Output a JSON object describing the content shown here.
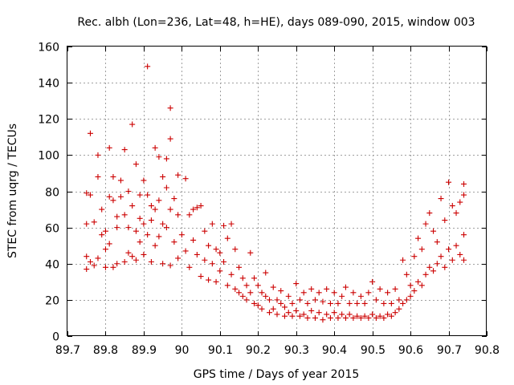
{
  "chart_data": {
    "type": "scatter",
    "title": "Rec. albh (Lon=236, Lat=48, h=HE), days 089-090, 2015, window 003",
    "xlabel": "GPS time / Days of year 2015",
    "ylabel": "STEC from uqrg / TECUs",
    "xlim": [
      89.7,
      90.8
    ],
    "ylim": [
      0,
      160
    ],
    "xticks": [
      "89.7",
      "89.8",
      "89.9",
      "90",
      "90.1",
      "90.2",
      "90.3",
      "90.4",
      "90.5",
      "90.6",
      "90.7",
      "90.8"
    ],
    "xtick_values": [
      89.7,
      89.8,
      89.9,
      90.0,
      90.1,
      90.2,
      90.3,
      90.4,
      90.5,
      90.6,
      90.7,
      90.8
    ],
    "yticks": [
      "0",
      "20",
      "40",
      "60",
      "80",
      "100",
      "120",
      "140",
      "160"
    ],
    "ytick_values": [
      0,
      20,
      40,
      60,
      80,
      100,
      120,
      140,
      160
    ],
    "grid": true,
    "marker": "+",
    "marker_color": "#cc0000",
    "series": [
      {
        "name": "STEC",
        "points": [
          [
            89.75,
            37
          ],
          [
            89.75,
            44
          ],
          [
            89.75,
            62
          ],
          [
            89.75,
            79
          ],
          [
            89.76,
            78
          ],
          [
            89.76,
            112
          ],
          [
            89.76,
            41
          ],
          [
            89.77,
            39
          ],
          [
            89.77,
            63
          ],
          [
            89.78,
            100
          ],
          [
            89.78,
            88
          ],
          [
            89.78,
            43
          ],
          [
            89.79,
            70
          ],
          [
            89.79,
            56
          ],
          [
            89.8,
            38
          ],
          [
            89.8,
            58
          ],
          [
            89.8,
            48
          ],
          [
            89.81,
            104
          ],
          [
            89.81,
            77
          ],
          [
            89.81,
            51
          ],
          [
            89.82,
            38
          ],
          [
            89.82,
            88
          ],
          [
            89.82,
            75
          ],
          [
            89.83,
            66
          ],
          [
            89.83,
            60
          ],
          [
            89.83,
            40
          ],
          [
            89.84,
            86
          ],
          [
            89.84,
            77
          ],
          [
            89.85,
            103
          ],
          [
            89.85,
            67
          ],
          [
            89.85,
            41
          ],
          [
            89.86,
            80
          ],
          [
            89.86,
            60
          ],
          [
            89.86,
            46
          ],
          [
            89.87,
            117
          ],
          [
            89.87,
            72
          ],
          [
            89.87,
            44
          ],
          [
            89.88,
            95
          ],
          [
            89.88,
            58
          ],
          [
            89.88,
            42
          ],
          [
            89.89,
            78
          ],
          [
            89.89,
            65
          ],
          [
            89.89,
            52
          ],
          [
            89.9,
            86
          ],
          [
            89.9,
            62
          ],
          [
            89.9,
            45
          ],
          [
            89.91,
            149
          ],
          [
            89.91,
            78
          ],
          [
            89.91,
            56
          ],
          [
            89.92,
            72
          ],
          [
            89.92,
            64
          ],
          [
            89.92,
            41
          ],
          [
            89.93,
            104
          ],
          [
            89.93,
            70
          ],
          [
            89.93,
            50
          ],
          [
            89.94,
            99
          ],
          [
            89.94,
            75
          ],
          [
            89.94,
            55
          ],
          [
            89.95,
            88
          ],
          [
            89.95,
            62
          ],
          [
            89.95,
            40
          ],
          [
            89.96,
            98
          ],
          [
            89.96,
            82
          ],
          [
            89.96,
            60
          ],
          [
            89.97,
            126
          ],
          [
            89.97,
            109
          ],
          [
            89.97,
            70
          ],
          [
            89.97,
            39
          ],
          [
            89.98,
            76
          ],
          [
            89.98,
            52
          ],
          [
            89.99,
            89
          ],
          [
            89.99,
            67
          ],
          [
            89.99,
            43
          ],
          [
            90.0,
            56
          ],
          [
            90.01,
            87
          ],
          [
            90.01,
            47
          ],
          [
            90.02,
            67
          ],
          [
            90.02,
            38
          ],
          [
            90.03,
            70
          ],
          [
            90.03,
            53
          ],
          [
            90.04,
            71
          ],
          [
            90.04,
            45
          ],
          [
            90.05,
            72
          ],
          [
            90.05,
            33
          ],
          [
            90.06,
            58
          ],
          [
            90.06,
            42
          ],
          [
            90.07,
            50
          ],
          [
            90.07,
            31
          ],
          [
            90.08,
            62
          ],
          [
            90.08,
            40
          ],
          [
            90.09,
            48
          ],
          [
            90.09,
            30
          ],
          [
            90.1,
            46
          ],
          [
            90.1,
            36
          ],
          [
            90.11,
            61
          ],
          [
            90.11,
            41
          ],
          [
            90.12,
            54
          ],
          [
            90.12,
            28
          ],
          [
            90.13,
            62
          ],
          [
            90.13,
            34
          ],
          [
            90.14,
            48
          ],
          [
            90.14,
            26
          ],
          [
            90.15,
            38
          ],
          [
            90.15,
            24
          ],
          [
            90.16,
            32
          ],
          [
            90.16,
            22
          ],
          [
            90.17,
            28
          ],
          [
            90.17,
            20
          ],
          [
            90.18,
            46
          ],
          [
            90.18,
            24
          ],
          [
            90.19,
            32
          ],
          [
            90.19,
            18
          ],
          [
            90.2,
            28
          ],
          [
            90.2,
            17
          ],
          [
            90.21,
            24
          ],
          [
            90.21,
            15
          ],
          [
            90.22,
            22
          ],
          [
            90.22,
            35
          ],
          [
            90.23,
            20
          ],
          [
            90.23,
            13
          ],
          [
            90.24,
            27
          ],
          [
            90.24,
            15
          ],
          [
            90.25,
            20
          ],
          [
            90.25,
            12
          ],
          [
            90.26,
            18
          ],
          [
            90.26,
            25
          ],
          [
            90.27,
            16
          ],
          [
            90.27,
            11
          ],
          [
            90.28,
            22
          ],
          [
            90.28,
            13
          ],
          [
            90.29,
            18
          ],
          [
            90.29,
            11
          ],
          [
            90.3,
            29
          ],
          [
            90.3,
            14
          ],
          [
            90.31,
            20
          ],
          [
            90.31,
            11
          ],
          [
            90.32,
            24
          ],
          [
            90.32,
            12
          ],
          [
            90.33,
            18
          ],
          [
            90.33,
            10
          ],
          [
            90.34,
            26
          ],
          [
            90.34,
            14
          ],
          [
            90.35,
            20
          ],
          [
            90.35,
            10
          ],
          [
            90.36,
            24
          ],
          [
            90.36,
            13
          ],
          [
            90.37,
            19
          ],
          [
            90.37,
            9
          ],
          [
            90.38,
            26
          ],
          [
            90.38,
            12
          ],
          [
            90.39,
            18
          ],
          [
            90.39,
            10
          ],
          [
            90.4,
            24
          ],
          [
            90.4,
            13
          ],
          [
            90.41,
            18
          ],
          [
            90.41,
            10
          ],
          [
            90.42,
            22
          ],
          [
            90.42,
            12
          ],
          [
            90.43,
            27
          ],
          [
            90.43,
            10
          ],
          [
            90.44,
            18
          ],
          [
            90.44,
            12
          ],
          [
            90.45,
            24
          ],
          [
            90.45,
            10
          ],
          [
            90.46,
            18
          ],
          [
            90.46,
            11
          ],
          [
            90.47,
            22
          ],
          [
            90.47,
            10
          ],
          [
            90.48,
            18
          ],
          [
            90.48,
            11
          ],
          [
            90.49,
            24
          ],
          [
            90.49,
            10
          ],
          [
            90.5,
            30
          ],
          [
            90.5,
            12
          ],
          [
            90.51,
            20
          ],
          [
            90.51,
            10
          ],
          [
            90.52,
            26
          ],
          [
            90.52,
            11
          ],
          [
            90.53,
            18
          ],
          [
            90.53,
            10
          ],
          [
            90.54,
            24
          ],
          [
            90.54,
            12
          ],
          [
            90.55,
            18
          ],
          [
            90.55,
            11
          ],
          [
            90.56,
            26
          ],
          [
            90.56,
            13
          ],
          [
            90.57,
            20
          ],
          [
            90.57,
            15
          ],
          [
            90.58,
            42
          ],
          [
            90.58,
            18
          ],
          [
            90.59,
            34
          ],
          [
            90.59,
            20
          ],
          [
            90.6,
            28
          ],
          [
            90.6,
            22
          ],
          [
            90.61,
            44
          ],
          [
            90.61,
            25
          ],
          [
            90.62,
            54
          ],
          [
            90.62,
            30
          ],
          [
            90.63,
            48
          ],
          [
            90.63,
            28
          ],
          [
            90.64,
            62
          ],
          [
            90.64,
            34
          ],
          [
            90.65,
            68
          ],
          [
            90.65,
            38
          ],
          [
            90.66,
            58
          ],
          [
            90.66,
            36
          ],
          [
            90.67,
            52
          ],
          [
            90.67,
            40
          ],
          [
            90.68,
            76
          ],
          [
            90.68,
            44
          ],
          [
            90.69,
            64
          ],
          [
            90.69,
            38
          ],
          [
            90.7,
            85
          ],
          [
            90.7,
            48
          ],
          [
            90.71,
            72
          ],
          [
            90.71,
            42
          ],
          [
            90.72,
            68
          ],
          [
            90.72,
            50
          ],
          [
            90.73,
            74
          ],
          [
            90.73,
            45
          ],
          [
            90.74,
            84
          ],
          [
            90.74,
            56
          ],
          [
            90.74,
            78
          ],
          [
            90.74,
            42
          ]
        ]
      }
    ]
  }
}
